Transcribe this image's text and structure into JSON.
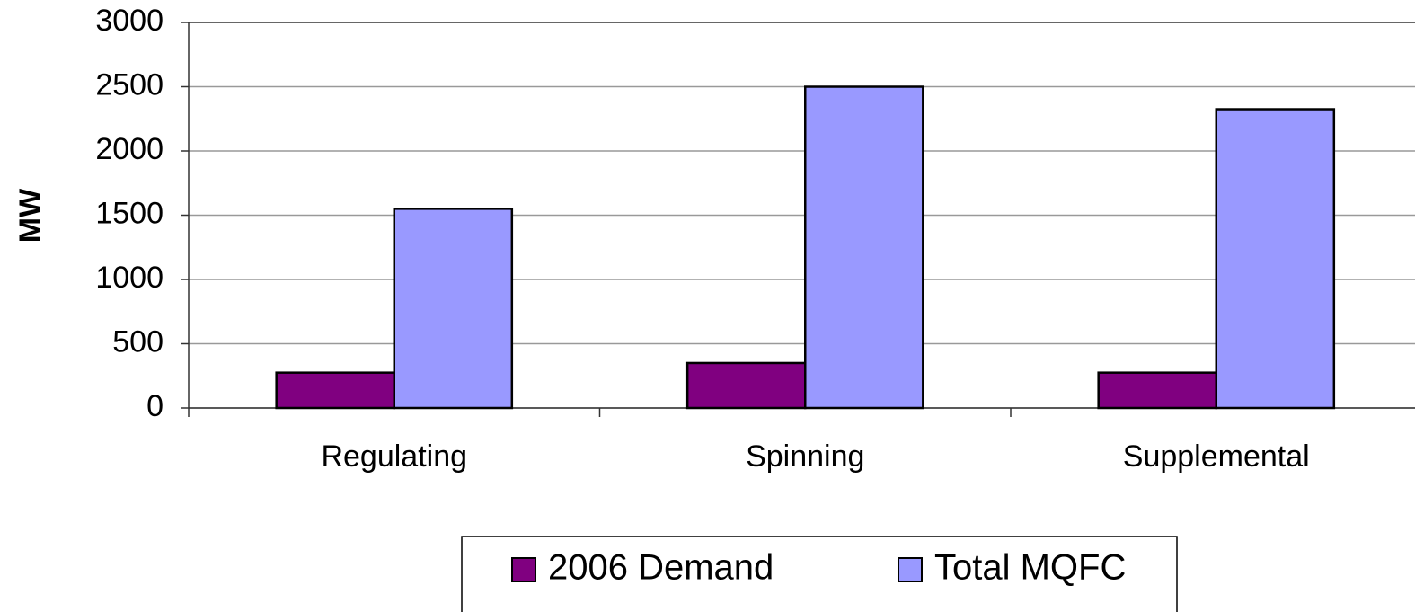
{
  "chart_data": {
    "type": "bar",
    "y_label": "MW",
    "categories": [
      "Regulating",
      "Spinning",
      "Supplemental"
    ],
    "series": [
      {
        "name": "2006 Demand",
        "color": "#800080",
        "values": [
          275,
          350,
          275
        ]
      },
      {
        "name": "Total MQFC",
        "color": "#9999ff",
        "values": [
          1550,
          2500,
          2325
        ]
      }
    ],
    "ylim": [
      0,
      3000
    ],
    "yticks": [
      0,
      500,
      1000,
      1500,
      2000,
      2500,
      3000
    ],
    "grid": true,
    "legend": "bottom"
  }
}
